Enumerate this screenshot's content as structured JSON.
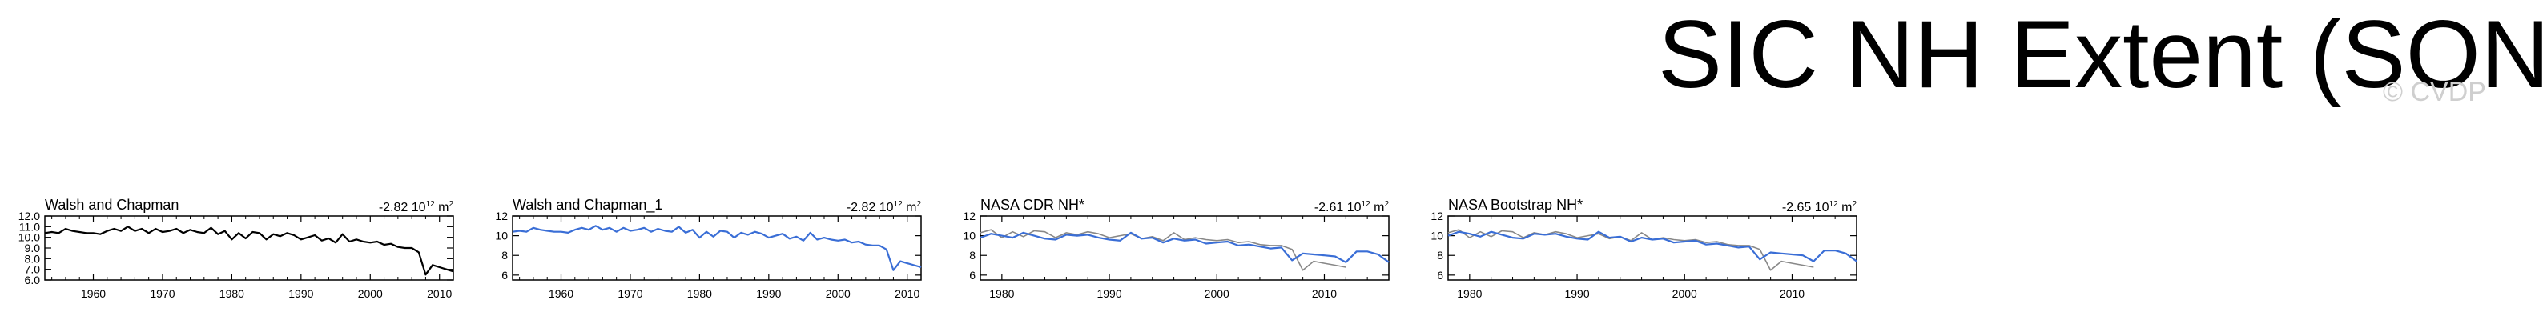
{
  "page": {
    "title": "SIC NH Extent (SON)",
    "watermark": "© CVDP"
  },
  "chart_data": [
    {
      "type": "line",
      "title": "Walsh and Chapman",
      "trend_label": {
        "value": "-2.82",
        "unit": "10",
        "exp1": "12",
        "unit2": "m",
        "exp2": "2"
      },
      "xlim": [
        1953,
        2012
      ],
      "ylim": [
        6,
        12
      ],
      "xticks": [
        1960,
        1970,
        1980,
        1990,
        2000,
        2010
      ],
      "yticks": [
        "6.0",
        "7.0",
        "8.0",
        "9.0",
        "10.0",
        "11.0",
        "12.0"
      ],
      "series": [
        {
          "color": "#000000",
          "x0": 1953,
          "values": [
            10.4,
            10.5,
            10.4,
            10.8,
            10.6,
            10.5,
            10.4,
            10.4,
            10.3,
            10.6,
            10.8,
            10.6,
            11.0,
            10.6,
            10.8,
            10.4,
            10.8,
            10.5,
            10.6,
            10.8,
            10.4,
            10.7,
            10.5,
            10.4,
            10.9,
            10.3,
            10.6,
            9.8,
            10.4,
            9.9,
            10.5,
            10.4,
            9.8,
            10.3,
            10.1,
            10.4,
            10.2,
            9.8,
            10.0,
            10.2,
            9.7,
            9.9,
            9.5,
            10.3,
            9.6,
            9.8,
            9.6,
            9.5,
            9.6,
            9.3,
            9.4,
            9.1,
            9.0,
            9.0,
            8.6,
            6.5,
            7.4,
            7.2,
            7.0,
            6.8
          ]
        }
      ]
    },
    {
      "type": "line",
      "title": "Walsh and Chapman_1",
      "trend_label": {
        "value": "-2.82",
        "unit": "10",
        "exp1": "12",
        "unit2": "m",
        "exp2": "2"
      },
      "xlim": [
        1953,
        2012
      ],
      "ylim": [
        5.5,
        12
      ],
      "xticks": [
        1960,
        1970,
        1980,
        1990,
        2000,
        2010
      ],
      "yticks": [
        "6",
        "8",
        "10",
        "12"
      ],
      "series": [
        {
          "color": "#3a6ed6",
          "x0": 1953,
          "values": [
            10.4,
            10.5,
            10.4,
            10.8,
            10.6,
            10.5,
            10.4,
            10.4,
            10.3,
            10.6,
            10.8,
            10.6,
            11.0,
            10.6,
            10.8,
            10.4,
            10.8,
            10.5,
            10.6,
            10.8,
            10.4,
            10.7,
            10.5,
            10.4,
            10.9,
            10.3,
            10.6,
            9.8,
            10.4,
            9.9,
            10.5,
            10.4,
            9.8,
            10.3,
            10.1,
            10.4,
            10.2,
            9.8,
            10.0,
            10.2,
            9.7,
            9.9,
            9.5,
            10.3,
            9.6,
            9.8,
            9.6,
            9.5,
            9.6,
            9.3,
            9.4,
            9.1,
            9.0,
            9.0,
            8.6,
            6.5,
            7.4,
            7.2,
            7.0,
            6.8
          ]
        }
      ]
    },
    {
      "type": "line",
      "title": "NASA CDR NH*",
      "trend_label": {
        "value": "-2.61",
        "unit": "10",
        "exp1": "12",
        "unit2": "m",
        "exp2": "2"
      },
      "xlim": [
        1978,
        2016
      ],
      "ylim": [
        5.5,
        12
      ],
      "xticks": [
        1980,
        1990,
        2000,
        2010
      ],
      "yticks": [
        "6",
        "8",
        "10",
        "12"
      ],
      "series": [
        {
          "color": "#888888",
          "x0": 1953,
          "values": [
            10.4,
            10.5,
            10.4,
            10.8,
            10.6,
            10.5,
            10.4,
            10.4,
            10.3,
            10.6,
            10.8,
            10.6,
            11.0,
            10.6,
            10.8,
            10.4,
            10.8,
            10.5,
            10.6,
            10.8,
            10.4,
            10.7,
            10.5,
            10.4,
            10.9,
            10.3,
            10.6,
            9.8,
            10.4,
            9.9,
            10.5,
            10.4,
            9.8,
            10.3,
            10.1,
            10.4,
            10.2,
            9.8,
            10.0,
            10.2,
            9.7,
            9.9,
            9.5,
            10.3,
            9.6,
            9.8,
            9.6,
            9.5,
            9.6,
            9.3,
            9.4,
            9.1,
            9.0,
            9.0,
            8.6,
            6.5,
            7.4,
            7.2,
            7.0,
            6.8
          ]
        },
        {
          "color": "#3a6ed6",
          "x0": 1978,
          "values": [
            9.8,
            10.2,
            10.0,
            9.8,
            10.3,
            10.0,
            9.7,
            9.6,
            10.1,
            10.0,
            10.1,
            9.8,
            9.6,
            9.5,
            10.3,
            9.7,
            9.8,
            9.3,
            9.7,
            9.5,
            9.6,
            9.2,
            9.3,
            9.4,
            9.0,
            9.1,
            8.9,
            8.7,
            8.8,
            7.5,
            8.2,
            8.1,
            8.0,
            7.9,
            7.3,
            8.4,
            8.4,
            8.1,
            7.3
          ]
        }
      ]
    },
    {
      "type": "line",
      "title": "NASA Bootstrap NH*",
      "trend_label": {
        "value": "-2.65",
        "unit": "10",
        "exp1": "12",
        "unit2": "m",
        "exp2": "2"
      },
      "xlim": [
        1978,
        2016
      ],
      "ylim": [
        5.5,
        12
      ],
      "xticks": [
        1980,
        1990,
        2000,
        2010
      ],
      "yticks": [
        "6",
        "8",
        "10",
        "12"
      ],
      "series": [
        {
          "color": "#888888",
          "x0": 1953,
          "values": [
            10.4,
            10.5,
            10.4,
            10.8,
            10.6,
            10.5,
            10.4,
            10.4,
            10.3,
            10.6,
            10.8,
            10.6,
            11.0,
            10.6,
            10.8,
            10.4,
            10.8,
            10.5,
            10.6,
            10.8,
            10.4,
            10.7,
            10.5,
            10.4,
            10.9,
            10.3,
            10.6,
            9.8,
            10.4,
            9.9,
            10.5,
            10.4,
            9.8,
            10.3,
            10.1,
            10.4,
            10.2,
            9.8,
            10.0,
            10.2,
            9.7,
            9.9,
            9.5,
            10.3,
            9.6,
            9.8,
            9.6,
            9.5,
            9.6,
            9.3,
            9.4,
            9.1,
            9.0,
            9.0,
            8.6,
            6.5,
            7.4,
            7.2,
            7.0,
            6.8
          ]
        },
        {
          "color": "#3a6ed6",
          "x0": 1978,
          "values": [
            10.0,
            10.4,
            10.2,
            9.9,
            10.4,
            10.1,
            9.8,
            9.7,
            10.2,
            10.1,
            10.2,
            9.9,
            9.7,
            9.6,
            10.4,
            9.8,
            9.9,
            9.4,
            9.8,
            9.6,
            9.7,
            9.3,
            9.4,
            9.5,
            9.1,
            9.2,
            9.0,
            8.8,
            8.9,
            7.6,
            8.3,
            8.2,
            8.1,
            8.0,
            7.4,
            8.5,
            8.5,
            8.2,
            7.4
          ]
        }
      ]
    }
  ]
}
